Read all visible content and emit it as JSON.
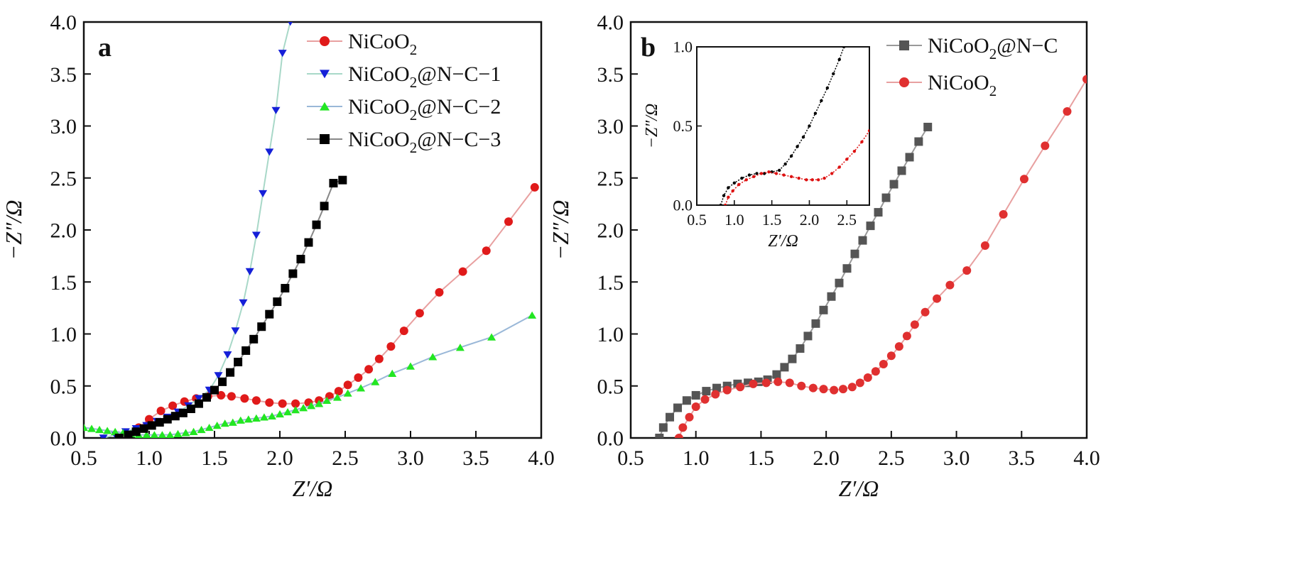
{
  "chart_data": [
    {
      "panel": "a",
      "type": "scatter",
      "xlabel": "Z′/Ω",
      "ylabel": "−Z″/Ω",
      "xlim": [
        0.5,
        4.0
      ],
      "ylim": [
        0.0,
        4.0
      ],
      "xticks": [
        "0.5",
        "1.0",
        "1.5",
        "2.0",
        "2.5",
        "3.0",
        "3.5",
        "4.0"
      ],
      "yticks": [
        "0.0",
        "0.5",
        "1.0",
        "1.5",
        "2.0",
        "2.5",
        "3.0",
        "3.5",
        "4.0"
      ],
      "legend_position": "top-right",
      "series": [
        {
          "name": "NiCoO2",
          "legend_main": "NiCoO",
          "legend_sub": "2",
          "legend_tail": "",
          "color": "#e01a1a",
          "line_color": "#e8a0a0",
          "marker": "circle",
          "x": [
            0.92,
            1.0,
            1.09,
            1.18,
            1.27,
            1.36,
            1.45,
            1.55,
            1.63,
            1.73,
            1.82,
            1.92,
            2.02,
            2.12,
            2.22,
            2.3,
            2.38,
            2.45,
            2.52,
            2.6,
            2.68,
            2.76,
            2.85,
            2.95,
            3.07,
            3.22,
            3.4,
            3.58,
            3.75,
            3.95
          ],
          "y": [
            0.1,
            0.18,
            0.26,
            0.31,
            0.35,
            0.38,
            0.4,
            0.41,
            0.4,
            0.38,
            0.36,
            0.34,
            0.33,
            0.33,
            0.34,
            0.36,
            0.4,
            0.45,
            0.51,
            0.58,
            0.66,
            0.76,
            0.88,
            1.03,
            1.2,
            1.4,
            1.6,
            1.8,
            2.08,
            2.41
          ]
        },
        {
          "name": "NiCoO2@N-C-1",
          "legend_main": "NiCoO",
          "legend_sub": "2",
          "legend_tail": "@N−C−1",
          "color": "#1520d8",
          "line_color": "#a8d8c8",
          "marker": "triangle-down",
          "x": [
            0.65,
            0.74,
            0.82,
            0.9,
            0.98,
            1.06,
            1.14,
            1.22,
            1.3,
            1.38,
            1.46,
            1.53,
            1.6,
            1.66,
            1.72,
            1.77,
            1.82,
            1.87,
            1.92,
            1.97,
            2.02,
            2.08
          ],
          "y": [
            0.0,
            0.03,
            0.06,
            0.09,
            0.12,
            0.16,
            0.2,
            0.25,
            0.31,
            0.38,
            0.46,
            0.6,
            0.8,
            1.03,
            1.3,
            1.6,
            1.95,
            2.35,
            2.75,
            3.15,
            3.7,
            4.0
          ]
        },
        {
          "name": "NiCoO2@N-C-2",
          "legend_main": "NiCoO",
          "legend_sub": "2",
          "legend_tail": "@N−C−2",
          "color": "#22e622",
          "line_color": "#9ab8d8",
          "marker": "triangle-up",
          "x": [
            0.5,
            0.56,
            0.62,
            0.68,
            0.74,
            0.8,
            0.86,
            0.92,
            0.98,
            1.04,
            1.1,
            1.16,
            1.22,
            1.28,
            1.34,
            1.4,
            1.46,
            1.52,
            1.58,
            1.64,
            1.7,
            1.76,
            1.82,
            1.88,
            1.94,
            2.0,
            2.06,
            2.12,
            2.18,
            2.24,
            2.3,
            2.36,
            2.44,
            2.52,
            2.62,
            2.73,
            2.86,
            3.0,
            3.17,
            3.38,
            3.62,
            3.93
          ],
          "y": [
            0.1,
            0.09,
            0.08,
            0.07,
            0.06,
            0.05,
            0.04,
            0.03,
            0.03,
            0.03,
            0.03,
            0.03,
            0.04,
            0.05,
            0.06,
            0.08,
            0.1,
            0.12,
            0.14,
            0.15,
            0.17,
            0.18,
            0.19,
            0.2,
            0.21,
            0.23,
            0.25,
            0.27,
            0.29,
            0.31,
            0.33,
            0.36,
            0.39,
            0.43,
            0.48,
            0.54,
            0.62,
            0.69,
            0.78,
            0.87,
            0.97,
            1.18
          ]
        },
        {
          "name": "NiCoO2@N-C-3",
          "legend_main": "NiCoO",
          "legend_sub": "2",
          "legend_tail": "@N−C−3",
          "color": "#000000",
          "line_color": "#888888",
          "marker": "square",
          "x": [
            0.77,
            0.84,
            0.9,
            0.96,
            1.02,
            1.08,
            1.14,
            1.2,
            1.26,
            1.32,
            1.38,
            1.44,
            1.5,
            1.56,
            1.62,
            1.68,
            1.74,
            1.8,
            1.86,
            1.92,
            1.98,
            2.04,
            2.1,
            2.16,
            2.22,
            2.28,
            2.34,
            2.41,
            2.48
          ],
          "y": [
            0.0,
            0.03,
            0.06,
            0.09,
            0.12,
            0.15,
            0.18,
            0.21,
            0.24,
            0.28,
            0.33,
            0.39,
            0.46,
            0.54,
            0.63,
            0.73,
            0.84,
            0.95,
            1.07,
            1.19,
            1.31,
            1.44,
            1.58,
            1.72,
            1.88,
            2.05,
            2.23,
            2.45,
            2.48
          ]
        }
      ]
    },
    {
      "panel": "b",
      "type": "scatter",
      "xlabel": "Z′/Ω",
      "ylabel": "−Z″/Ω",
      "xlim": [
        0.5,
        4.0
      ],
      "ylim": [
        0.0,
        4.0
      ],
      "xticks": [
        "0.5",
        "1.0",
        "1.5",
        "2.0",
        "2.5",
        "3.0",
        "3.5",
        "4.0"
      ],
      "yticks": [
        "0.0",
        "0.5",
        "1.0",
        "1.5",
        "2.0",
        "2.5",
        "3.0",
        "3.5",
        "4.0"
      ],
      "legend_position": "top-right",
      "series": [
        {
          "name": "NiCoO2@N-C",
          "legend_main": "NiCoO",
          "legend_sub": "2",
          "legend_tail": "@N−C",
          "color": "#555555",
          "line_color": "#999999",
          "marker": "square",
          "x": [
            0.72,
            0.75,
            0.8,
            0.86,
            0.93,
            1.0,
            1.08,
            1.16,
            1.24,
            1.32,
            1.4,
            1.48,
            1.55,
            1.62,
            1.68,
            1.74,
            1.8,
            1.86,
            1.92,
            1.98,
            2.04,
            2.1,
            2.16,
            2.22,
            2.28,
            2.34,
            2.4,
            2.46,
            2.52,
            2.58,
            2.64,
            2.71,
            2.78
          ],
          "y": [
            0.0,
            0.1,
            0.2,
            0.29,
            0.36,
            0.41,
            0.45,
            0.48,
            0.5,
            0.52,
            0.53,
            0.54,
            0.56,
            0.61,
            0.68,
            0.76,
            0.86,
            0.98,
            1.1,
            1.23,
            1.36,
            1.49,
            1.63,
            1.77,
            1.9,
            2.04,
            2.17,
            2.31,
            2.44,
            2.57,
            2.7,
            2.85,
            2.99
          ]
        },
        {
          "name": "NiCoO2",
          "legend_main": "NiCoO",
          "legend_sub": "2",
          "legend_tail": "",
          "color": "#e03030",
          "line_color": "#e8a0a0",
          "marker": "circle",
          "x": [
            0.87,
            0.9,
            0.95,
            1.0,
            1.07,
            1.15,
            1.24,
            1.34,
            1.44,
            1.54,
            1.63,
            1.72,
            1.81,
            1.9,
            1.98,
            2.06,
            2.13,
            2.2,
            2.26,
            2.32,
            2.38,
            2.44,
            2.5,
            2.56,
            2.62,
            2.68,
            2.76,
            2.85,
            2.95,
            3.08,
            3.22,
            3.36,
            3.52,
            3.68,
            3.85,
            4.0
          ],
          "y": [
            0.0,
            0.1,
            0.2,
            0.3,
            0.37,
            0.42,
            0.46,
            0.49,
            0.52,
            0.53,
            0.54,
            0.53,
            0.5,
            0.48,
            0.47,
            0.46,
            0.47,
            0.49,
            0.53,
            0.58,
            0.64,
            0.71,
            0.79,
            0.88,
            0.98,
            1.09,
            1.21,
            1.34,
            1.47,
            1.61,
            1.85,
            2.15,
            2.49,
            2.81,
            3.14,
            3.45
          ]
        }
      ],
      "inset": {
        "type": "line",
        "xlabel": "Z′/Ω",
        "ylabel": "−Z″/Ω",
        "xlim": [
          0.5,
          2.8
        ],
        "ylim": [
          0.0,
          1.0
        ],
        "xticks": [
          "0.5",
          "1.0",
          "1.5",
          "2.0",
          "2.5"
        ],
        "yticks": [
          "0.0",
          "0.5",
          "1.0"
        ],
        "series": [
          {
            "name": "NiCoO2@N-C",
            "color": "#000000",
            "x": [
              0.82,
              0.86,
              0.92,
              1.0,
              1.1,
              1.2,
              1.3,
              1.4,
              1.5,
              1.6,
              1.68,
              1.76,
              1.84,
              1.92,
              2.0,
              2.08,
              2.16,
              2.24,
              2.32,
              2.4,
              2.46
            ],
            "y": [
              0.0,
              0.06,
              0.11,
              0.14,
              0.17,
              0.19,
              0.2,
              0.2,
              0.21,
              0.22,
              0.26,
              0.31,
              0.37,
              0.43,
              0.5,
              0.58,
              0.66,
              0.74,
              0.83,
              0.92,
              1.0
            ]
          },
          {
            "name": "NiCoO2",
            "color": "#dd1111",
            "x": [
              0.88,
              0.92,
              0.98,
              1.06,
              1.16,
              1.26,
              1.36,
              1.46,
              1.56,
              1.66,
              1.76,
              1.86,
              1.96,
              2.04,
              2.12,
              2.2,
              2.3,
              2.4,
              2.5,
              2.6,
              2.7,
              2.8
            ],
            "y": [
              0.0,
              0.05,
              0.09,
              0.13,
              0.16,
              0.18,
              0.2,
              0.21,
              0.2,
              0.19,
              0.18,
              0.17,
              0.16,
              0.16,
              0.16,
              0.17,
              0.2,
              0.24,
              0.29,
              0.34,
              0.4,
              0.47
            ]
          }
        ]
      }
    }
  ],
  "labels": {
    "panel_a": "a",
    "panel_b": "b"
  }
}
